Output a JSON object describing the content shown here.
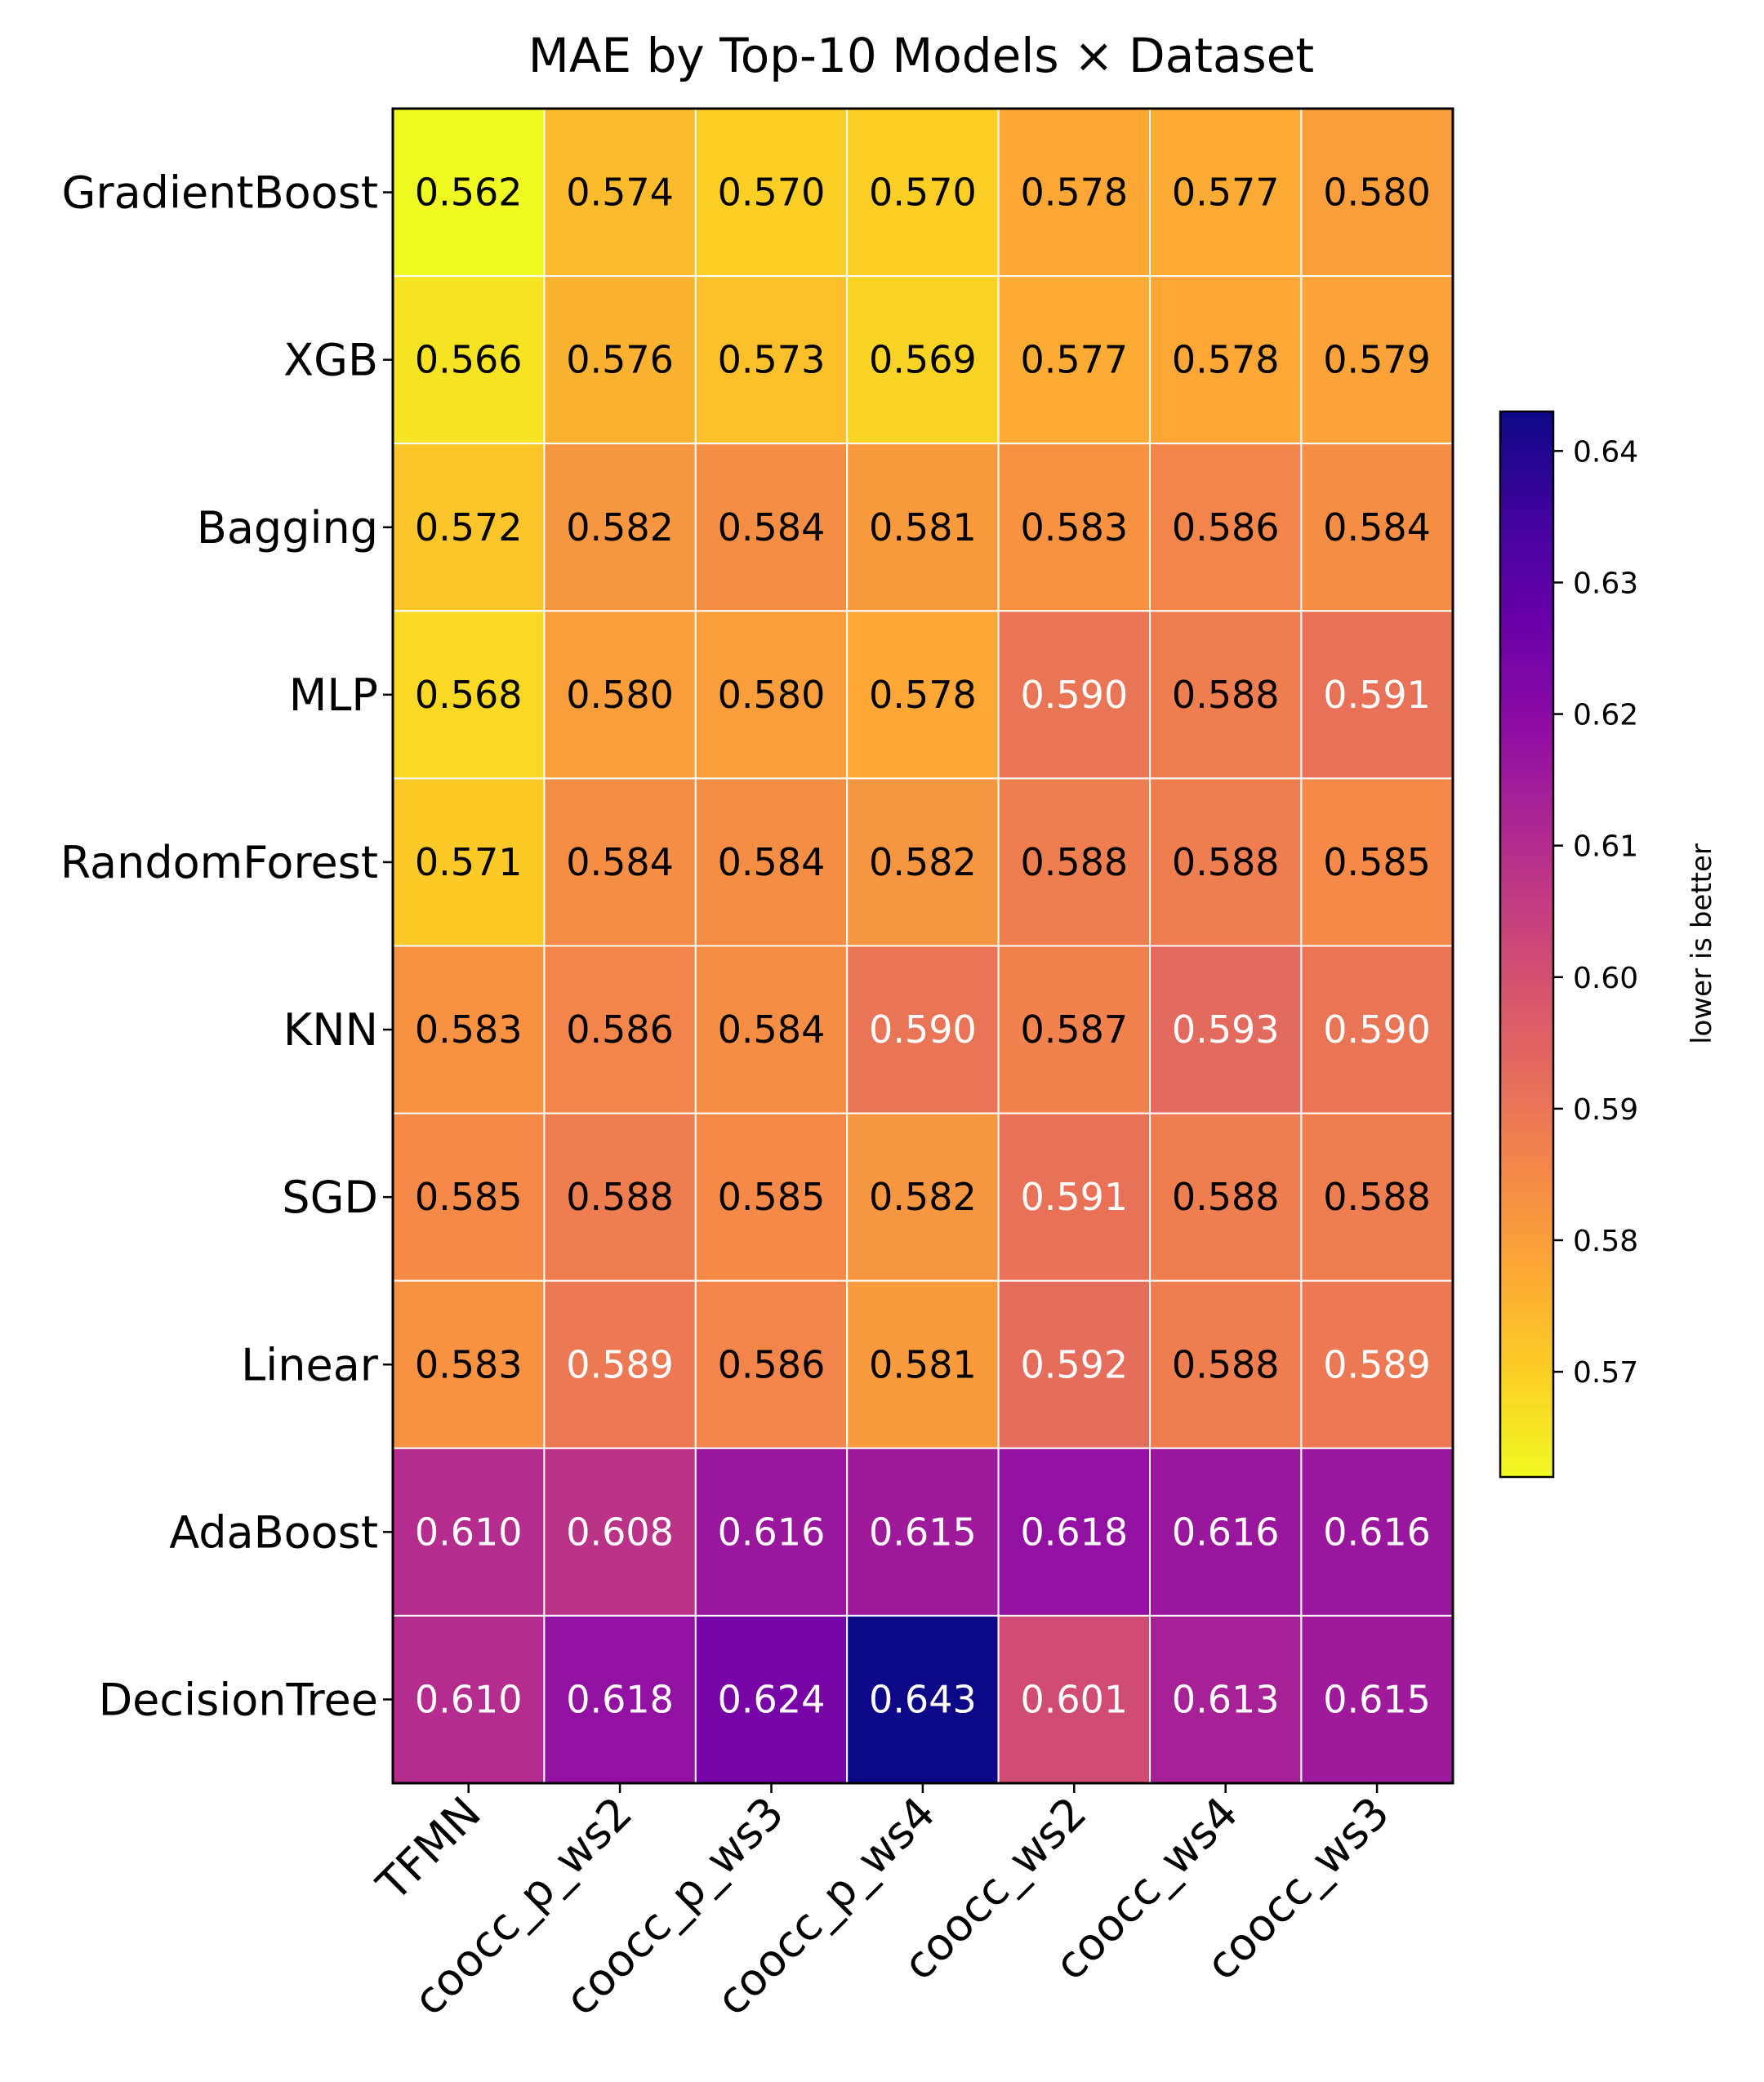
{
  "chart_data": {
    "type": "heatmap",
    "title": "MAE by Top-10 Models × Dataset",
    "rows": [
      "GradientBoost",
      "XGB",
      "Bagging",
      "MLP",
      "RandomForest",
      "KNN",
      "SGD",
      "Linear",
      "AdaBoost",
      "DecisionTree"
    ],
    "columns": [
      "TFMN",
      "coocc_p_ws2",
      "coocc_p_ws3",
      "coocc_p_ws4",
      "coocc_ws2",
      "coocc_ws4",
      "coocc_ws3"
    ],
    "values": [
      [
        0.562,
        0.574,
        0.57,
        0.57,
        0.578,
        0.577,
        0.58
      ],
      [
        0.566,
        0.576,
        0.573,
        0.569,
        0.577,
        0.578,
        0.579
      ],
      [
        0.572,
        0.582,
        0.584,
        0.581,
        0.583,
        0.586,
        0.584
      ],
      [
        0.568,
        0.58,
        0.58,
        0.578,
        0.59,
        0.588,
        0.591
      ],
      [
        0.571,
        0.584,
        0.584,
        0.582,
        0.588,
        0.588,
        0.585
      ],
      [
        0.583,
        0.586,
        0.584,
        0.59,
        0.587,
        0.593,
        0.59
      ],
      [
        0.585,
        0.588,
        0.585,
        0.582,
        0.591,
        0.588,
        0.588
      ],
      [
        0.583,
        0.589,
        0.586,
        0.581,
        0.592,
        0.588,
        0.589
      ],
      [
        0.61,
        0.608,
        0.616,
        0.615,
        0.618,
        0.616,
        0.616
      ],
      [
        0.61,
        0.618,
        0.624,
        0.643,
        0.601,
        0.613,
        0.615
      ]
    ],
    "value_format": "0.000",
    "colormap": "plasma_r",
    "vmin": 0.562,
    "vmax": 0.643,
    "colorbar": {
      "label": "lower is better",
      "ticks": [
        0.57,
        0.58,
        0.59,
        0.6,
        0.61,
        0.62,
        0.63,
        0.64
      ],
      "tick_labels": [
        "0.57",
        "0.58",
        "0.59",
        "0.60",
        "0.61",
        "0.62",
        "0.63",
        "0.64"
      ]
    },
    "colors": {
      "plasma": [
        "#0d0887",
        "#41049d",
        "#6a00a8",
        "#8f0da4",
        "#b12a90",
        "#cc4778",
        "#e16462",
        "#f2844b",
        "#fca636",
        "#fcce25",
        "#f0f921"
      ],
      "cell_border": "#ffffff",
      "text_dark": "#000000",
      "text_light": "#ffffff"
    }
  }
}
